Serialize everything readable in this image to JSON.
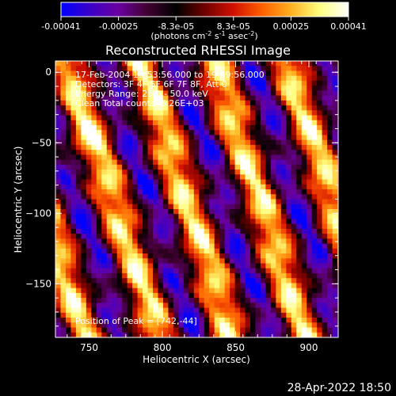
{
  "chart_data": {
    "type": "heatmap",
    "title": "Reconstructed RHESSI Image",
    "xlabel": "Heliocentric X (arcsec)",
    "ylabel": "Heliocentric Y (arcsec)",
    "xlim": [
      727,
      920
    ],
    "ylim": [
      -188,
      8
    ],
    "xticks": [
      750,
      800,
      850,
      900
    ],
    "yticks": [
      0,
      -50,
      -100,
      -150
    ],
    "grid": false,
    "colorbar": {
      "min": -0.00041,
      "max": 0.00041,
      "ticks": [
        "-0.00041",
        "-0.00025",
        "-8.3e-05",
        "8.3e-05",
        "0.00025",
        "0.00041"
      ],
      "units_main": "(photons cm",
      "units_sup1": "-2",
      "units_mid": " s",
      "units_sup2": "-1",
      "units_mid2": " asec",
      "units_sup3": "-2",
      "units_end": ")",
      "colors": [
        "#0000ff",
        "#3a00c8",
        "#6a00a0",
        "#400030",
        "#000000",
        "#700000",
        "#d01000",
        "#ff6000",
        "#ffb020",
        "#ffff80",
        "#ffffff"
      ]
    },
    "annotations": [
      "17-Feb-2004 19:53:56.000 to 19:59:56.000",
      "Detectors: 3F 4F 5F 6F 7F 8F, Att 0",
      "Energy Range: 25.0 - 50.0 keV",
      "Clean    Total counts: 6.26E+03"
    ],
    "peak_label": "Position of Peak = [742,-44]",
    "peak": [
      742,
      -44
    ],
    "pattern": {
      "bright_bands_x_at_top": [
        735,
        790,
        838,
        882,
        920
      ],
      "stripe_slope": 0.32,
      "period_arcsec": 50
    }
  },
  "footer": {
    "timestamp": "28-Apr-2022 18:50"
  }
}
